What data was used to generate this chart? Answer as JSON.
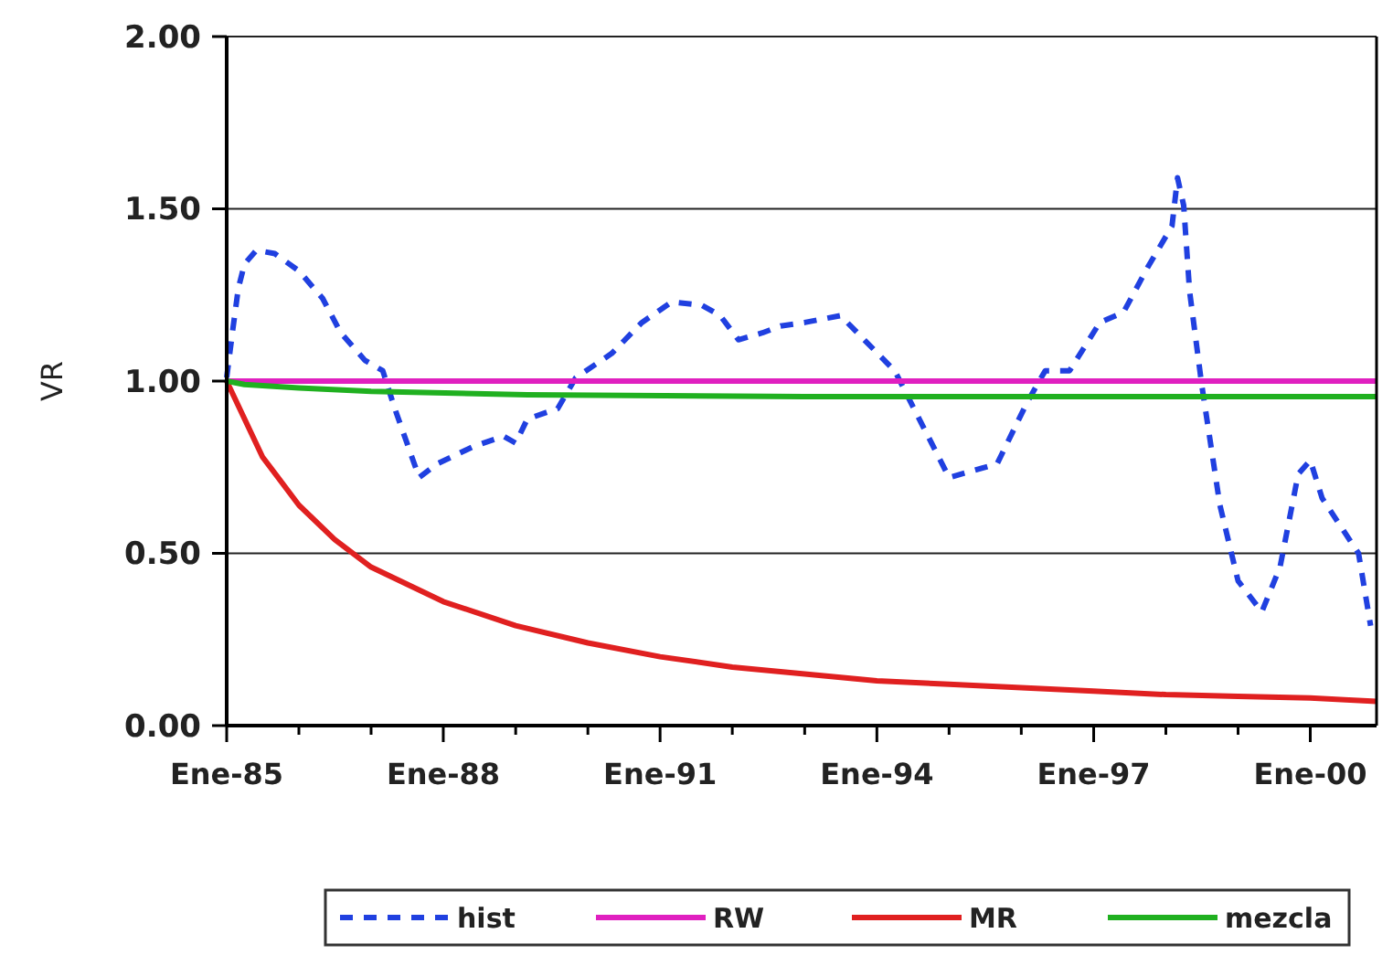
{
  "chart_data": {
    "type": "line",
    "ylabel": "VR",
    "ylim": [
      0,
      2
    ],
    "yticks": [
      {
        "value": 0,
        "label": "0.00"
      },
      {
        "value": 0.5,
        "label": "0.50"
      },
      {
        "value": 1,
        "label": "1.00"
      },
      {
        "value": 1.5,
        "label": "1.50"
      },
      {
        "value": 2,
        "label": "2.00"
      }
    ],
    "xlim": [
      "1985-01",
      "2000-12"
    ],
    "xticks": [
      {
        "value": "1985-01",
        "label": "Ene-85"
      },
      {
        "value": "1986-01",
        "label": null
      },
      {
        "value": "1987-01",
        "label": null
      },
      {
        "value": "1988-01",
        "label": "Ene-88"
      },
      {
        "value": "1989-01",
        "label": null
      },
      {
        "value": "1990-01",
        "label": null
      },
      {
        "value": "1991-01",
        "label": "Ene-91"
      },
      {
        "value": "1992-01",
        "label": null
      },
      {
        "value": "1993-01",
        "label": null
      },
      {
        "value": "1994-01",
        "label": "Ene-94"
      },
      {
        "value": "1995-01",
        "label": null
      },
      {
        "value": "1996-01",
        "label": null
      },
      {
        "value": "1997-01",
        "label": "Ene-97"
      },
      {
        "value": "1998-01",
        "label": null
      },
      {
        "value": "1999-01",
        "label": null
      },
      {
        "value": "2000-01",
        "label": "Ene-00"
      }
    ],
    "grid": "y",
    "legend": "bottom",
    "series": [
      {
        "name": "hist",
        "color": "#2040e0",
        "line_style": "dashed",
        "x": [
          "1985-01",
          "1985-02",
          "1985-03",
          "1985-04",
          "1985-06",
          "1985-09",
          "1986-01",
          "1986-05",
          "1986-08",
          "1986-12",
          "1987-03",
          "1987-05",
          "1987-09",
          "1987-12",
          "1988-06",
          "1988-11",
          "1989-01",
          "1989-03",
          "1989-08",
          "1989-11",
          "1990-05",
          "1990-10",
          "1991-03",
          "1991-08",
          "1991-11",
          "1992-02",
          "1992-06",
          "1992-09",
          "1993-01",
          "1993-07",
          "1994-04",
          "1995-01",
          "1995-09",
          "1996-02",
          "1996-05",
          "1996-09",
          "1997-02",
          "1997-06",
          "1997-10",
          "1998-02",
          "1998-03",
          "1998-04",
          "1998-05",
          "1998-07",
          "1998-10",
          "1999-01",
          "1999-05",
          "1999-08",
          "1999-11",
          "2000-01",
          "2000-03",
          "2000-06",
          "2000-09",
          "2000-11"
        ],
        "values": [
          1.01,
          1.15,
          1.27,
          1.34,
          1.38,
          1.37,
          1.32,
          1.24,
          1.14,
          1.06,
          1.03,
          0.92,
          0.72,
          0.76,
          0.81,
          0.84,
          0.82,
          0.89,
          0.92,
          1.01,
          1.08,
          1.17,
          1.23,
          1.22,
          1.19,
          1.12,
          1.14,
          1.16,
          1.17,
          1.19,
          1.03,
          0.72,
          0.76,
          0.94,
          1.03,
          1.03,
          1.17,
          1.2,
          1.33,
          1.45,
          1.59,
          1.51,
          1.26,
          0.99,
          0.64,
          0.42,
          0.33,
          0.46,
          0.73,
          0.77,
          0.66,
          0.58,
          0.5,
          0.29
        ]
      },
      {
        "name": "RW",
        "color": "#e020c0",
        "x": [
          "1985-01",
          "2000-12"
        ],
        "values": [
          1,
          1
        ]
      },
      {
        "name": "MR",
        "color": "#e02020",
        "x": [
          "1985-01",
          "1985-07",
          "1986-01",
          "1986-07",
          "1987-01",
          "1988-01",
          "1989-01",
          "1990-01",
          "1991-01",
          "1992-01",
          "1993-01",
          "1994-01",
          "1995-01",
          "1996-01",
          "1997-01",
          "1998-01",
          "1999-01",
          "2000-01",
          "2000-12"
        ],
        "values": [
          1,
          0.78,
          0.64,
          0.54,
          0.46,
          0.36,
          0.29,
          0.24,
          0.2,
          0.17,
          0.15,
          0.13,
          0.12,
          0.11,
          0.1,
          0.09,
          0.085,
          0.08,
          0.07
        ]
      },
      {
        "name": "mezcla",
        "color": "#20b020",
        "x": [
          "1985-01",
          "1985-04",
          "1986-01",
          "1987-01",
          "1989-03",
          "1993-01",
          "2000-12"
        ],
        "values": [
          1,
          0.99,
          0.98,
          0.97,
          0.96,
          0.955,
          0.955
        ]
      }
    ]
  }
}
